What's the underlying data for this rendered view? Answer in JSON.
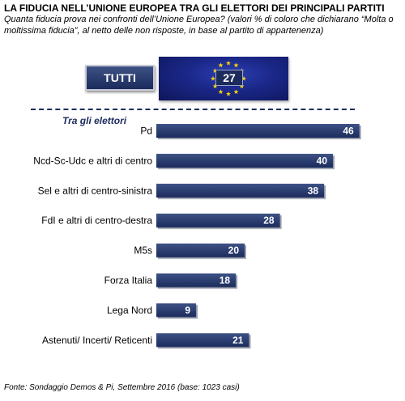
{
  "header": {
    "title": "LA FIDUCIA NELL’UNIONE EUROPEA TRA GLI ELETTORI DEI PRINCIPALI PARTITI",
    "subtitle": "Quanta fiducia prova nei confronti dell’Unione Europea? (valori % di coloro che dichiarano “Molta o moltissima fiducia”, al netto delle non risposte, in base al partito di appartenenza)"
  },
  "total": {
    "label": "TUTTI",
    "value": "27"
  },
  "section_label": "Tra gli elettori",
  "source": "Fonte: Sondaggio Demos & Pi, Settembre 2016 (base: 1023 casi)",
  "colors": {
    "bar": "#1b2b5c",
    "bar_light": "#3e5285",
    "flag_blue": "#1a2787",
    "star": "#ffd500"
  },
  "icons": {
    "flag": "eu-flag-icon"
  },
  "chart_data": {
    "type": "bar",
    "orientation": "horizontal",
    "categories": [
      "Pd",
      "Ncd-Sc-Udc e altri di centro",
      "Sel e altri di centro-sinistra",
      "FdI e altri di centro-destra",
      "M5s",
      "Forza Italia",
      "Lega Nord",
      "Astenuti/ Incerti/ Reticenti"
    ],
    "values": [
      46,
      40,
      38,
      28,
      20,
      18,
      9,
      21
    ],
    "xlim": [
      0,
      50
    ],
    "grid": false,
    "legend": false
  }
}
